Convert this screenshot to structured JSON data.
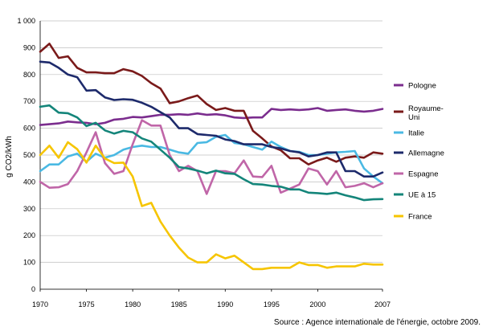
{
  "chart_data": {
    "type": "line",
    "ylabel": "g CO2/kWh",
    "ylim": [
      0,
      1000
    ],
    "yticks": [
      0,
      100,
      200,
      300,
      400,
      500,
      600,
      700,
      800,
      900,
      1000
    ],
    "ytick_labels": [
      "0",
      "100",
      "200",
      "300",
      "400",
      "500",
      "600",
      "700",
      "800",
      "900",
      "1 000"
    ],
    "xlim": [
      1970,
      2007
    ],
    "xticks": [
      1970,
      1975,
      1980,
      1985,
      1990,
      1995,
      2000,
      2007
    ],
    "x": [
      1970,
      1971,
      1972,
      1973,
      1974,
      1975,
      1976,
      1977,
      1978,
      1979,
      1980,
      1981,
      1982,
      1983,
      1984,
      1985,
      1986,
      1987,
      1988,
      1989,
      1990,
      1991,
      1992,
      1993,
      1994,
      1995,
      1996,
      1997,
      1998,
      1999,
      2000,
      2001,
      2002,
      2003,
      2004,
      2005,
      2006,
      2007
    ],
    "grid": "horizontal",
    "legend_position": "right",
    "source": "Source : Agence internationale de l'énergie, octobre 2009.",
    "series": [
      {
        "name": "Pologne",
        "color": "#7b2d8e",
        "values": [
          612,
          615,
          618,
          625,
          622,
          620,
          615,
          620,
          632,
          635,
          642,
          640,
          645,
          650,
          650,
          652,
          650,
          655,
          650,
          652,
          648,
          640,
          638,
          640,
          640,
          672,
          668,
          670,
          668,
          670,
          675,
          665,
          668,
          670,
          665,
          662,
          665,
          672
        ]
      },
      {
        "name": "Royaume-Uni",
        "color": "#7a1a1a",
        "values": [
          885,
          915,
          862,
          868,
          825,
          808,
          808,
          805,
          805,
          820,
          812,
          795,
          768,
          748,
          693,
          700,
          712,
          722,
          690,
          668,
          675,
          665,
          665,
          590,
          562,
          532,
          518,
          488,
          488,
          465,
          480,
          490,
          475,
          490,
          495,
          490,
          510,
          505
        ]
      },
      {
        "name": "Italie",
        "color": "#4ab9e3",
        "values": [
          440,
          465,
          465,
          495,
          505,
          475,
          505,
          490,
          500,
          520,
          530,
          535,
          530,
          530,
          520,
          510,
          505,
          545,
          548,
          568,
          575,
          545,
          540,
          530,
          520,
          550,
          530,
          515,
          512,
          500,
          500,
          505,
          510,
          512,
          515,
          450,
          420,
          395
        ]
      },
      {
        "name": "Allemagne",
        "color": "#1d2a6b",
        "values": [
          848,
          845,
          825,
          800,
          790,
          740,
          742,
          715,
          705,
          708,
          706,
          695,
          680,
          660,
          640,
          600,
          600,
          578,
          575,
          572,
          558,
          552,
          540,
          540,
          540,
          530,
          525,
          515,
          510,
          495,
          500,
          510,
          510,
          440,
          440,
          420,
          420,
          435
        ]
      },
      {
        "name": "Espagne",
        "color": "#c066a8",
        "values": [
          400,
          378,
          380,
          392,
          440,
          510,
          585,
          470,
          430,
          440,
          540,
          630,
          610,
          610,
          500,
          440,
          460,
          440,
          355,
          440,
          440,
          432,
          480,
          420,
          418,
          460,
          360,
          375,
          390,
          450,
          440,
          390,
          440,
          380,
          385,
          395,
          380,
          395
        ]
      },
      {
        "name": "UE à 15",
        "color": "#14857a",
        "values": [
          680,
          685,
          658,
          656,
          640,
          608,
          620,
          592,
          580,
          590,
          585,
          562,
          550,
          520,
          490,
          455,
          450,
          442,
          432,
          442,
          432,
          430,
          410,
          392,
          390,
          385,
          382,
          372,
          372,
          360,
          358,
          355,
          360,
          350,
          342,
          332,
          335,
          336
        ]
      },
      {
        "name": "France",
        "color": "#f6c500",
        "values": [
          500,
          535,
          490,
          548,
          522,
          472,
          535,
          487,
          470,
          472,
          420,
          310,
          322,
          252,
          200,
          155,
          118,
          100,
          100,
          130,
          115,
          125,
          100,
          75,
          75,
          80,
          80,
          80,
          100,
          90,
          90,
          80,
          85,
          85,
          85,
          95,
          92,
          92
        ]
      }
    ]
  }
}
